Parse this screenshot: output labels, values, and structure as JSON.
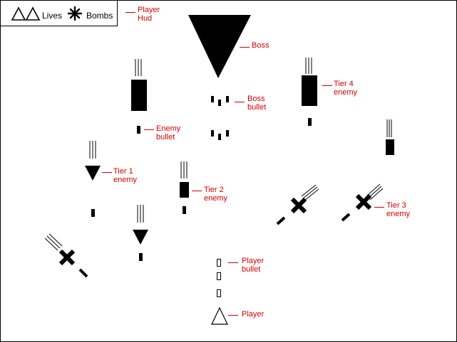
{
  "hud": {
    "lives_label": "Lives",
    "bombs_label": "Bombs",
    "lives_icon": "triangle-outline-icon",
    "bombs_icon": "asterisk-icon"
  },
  "labels": {
    "player_hud": [
      "Player",
      "Hud"
    ],
    "boss": [
      "Boss"
    ],
    "boss_bullet": [
      "Boss",
      "bullet"
    ],
    "enemy_bullet": [
      "Enemy",
      "bullet"
    ],
    "tier4": [
      "Tier 4",
      "enemy"
    ],
    "tier1": [
      "Tier 1",
      "enemy"
    ],
    "tier2": [
      "Tier 2",
      "enemy"
    ],
    "tier3": [
      "Tier 3",
      "enemy"
    ],
    "player_bullet": [
      "Player",
      "bullet"
    ],
    "player": [
      "Player"
    ]
  },
  "colors": {
    "label": "#d40000",
    "ink": "#000000",
    "background": "#ffffff"
  }
}
